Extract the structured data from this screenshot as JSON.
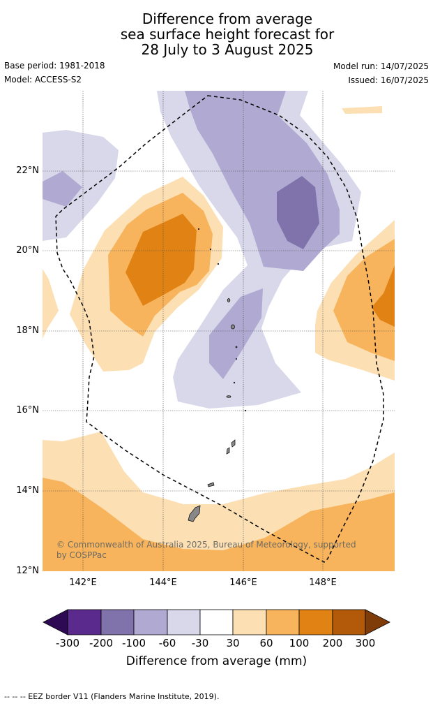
{
  "title": {
    "line1": "Difference from average",
    "line2": "sea surface height forecast for",
    "line3": "28 July to 3 August 2025"
  },
  "meta": {
    "base_period": "Base period: 1981-2018",
    "model": "Model: ACCESS-S2",
    "model_run": "Model run: 14/07/2025",
    "issued": "Issued: 16/07/2025"
  },
  "map": {
    "lat_ticks": [
      "22°N",
      "20°N",
      "18°N",
      "16°N",
      "14°N",
      "12°N"
    ],
    "lon_ticks": [
      "142°E",
      "144°E",
      "146°E",
      "148°E"
    ],
    "copyright": "© Commonwealth of Australia 2025, Bureau of Meteorology, supported by COSPPac",
    "colors": {
      "neg_300": "#2e0a55",
      "neg_200": "#5a2a8c",
      "neg_100": "#8072ab",
      "neg_60": "#b0aad2",
      "neg_30": "#d8d8ea",
      "zero": "#ffffff",
      "pos_30": "#fce0b4",
      "pos_60": "#f8b45c",
      "pos_100": "#e08314",
      "pos_200": "#b25a0a",
      "pos_300": "#7f3b08",
      "land": "#888888"
    }
  },
  "colorbar": {
    "ticks": [
      "-300",
      "-200",
      "-100",
      "-60",
      "-30",
      "30",
      "60",
      "100",
      "200",
      "300"
    ],
    "label": "Difference from average (mm)"
  },
  "footnote": "--  --  -- EEZ border V11 (Flanders Marine Institute, 2019)."
}
